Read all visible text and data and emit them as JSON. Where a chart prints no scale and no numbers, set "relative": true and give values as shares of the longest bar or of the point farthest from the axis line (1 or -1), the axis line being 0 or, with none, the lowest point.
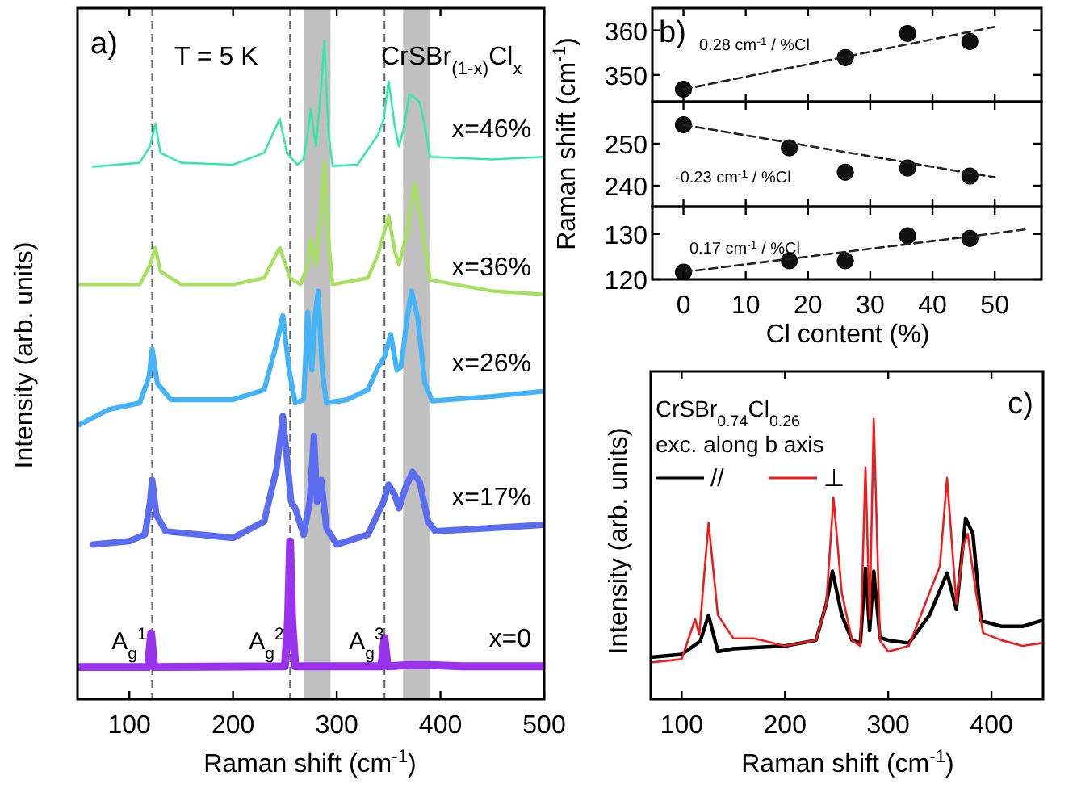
{
  "chart_data": [
    {
      "type": "line",
      "relative": true,
      "xlabel": "Raman shift (cm$^{-1}$)",
      "ylabel": "Intensity (arb. units)",
      "xlim": [
        50,
        500
      ],
      "xticks": [
        100,
        200,
        300,
        400,
        500
      ],
      "legend": false,
      "annotations": [
        "a)",
        "T = 5 K",
        "CrSBr$_{(1-x)}$Cl$_{x}$",
        "A$_{g}$$^{1}$",
        "A$_{g}$$^{2}$",
        "A$_{g}$$^{3}$"
      ],
      "ref_lines": [
        {
          "axis": "x",
          "value": 122,
          "line_style": "dashed",
          "color": "#666666"
        },
        {
          "axis": "x",
          "value": 255,
          "line_style": "dashed",
          "color": "#666666"
        },
        {
          "axis": "x",
          "value": 346,
          "line_style": "dashed",
          "color": "#666666"
        }
      ],
      "bands": [
        {
          "axis": "x",
          "from": 268,
          "to": 294,
          "color": "#c0c0c0"
        },
        {
          "axis": "x",
          "from": 364,
          "to": 390,
          "color": "#c0c0c0"
        }
      ],
      "series": [
        {
          "name": "x=0",
          "color": "#9933ee",
          "x": [
            50,
            118,
            121,
            124,
            250,
            253,
            255,
            257,
            260,
            343,
            346,
            349,
            370,
            390,
            420,
            500
          ],
          "values": [
            0.049,
            0.049,
            0.1,
            0.049,
            0.05,
            0.12,
            0.24,
            0.12,
            0.05,
            0.05,
            0.093,
            0.05,
            0.052,
            0.052,
            0.05,
            0.05
          ]
        },
        {
          "name": "x=17%",
          "color": "#5b6cf0",
          "x": [
            65,
            100,
            115,
            120,
            122,
            126,
            135,
            200,
            230,
            242,
            248,
            253,
            256,
            260,
            268,
            274,
            278,
            281,
            285,
            290,
            300,
            330,
            345,
            350,
            356,
            360,
            366,
            373,
            380,
            388,
            395,
            450,
            500
          ],
          "values": [
            0.235,
            0.24,
            0.25,
            0.3,
            0.333,
            0.28,
            0.255,
            0.245,
            0.27,
            0.35,
            0.43,
            0.35,
            0.3,
            0.29,
            0.25,
            0.3,
            0.4,
            0.3,
            0.333,
            0.26,
            0.235,
            0.25,
            0.3,
            0.326,
            0.31,
            0.29,
            0.32,
            0.345,
            0.33,
            0.27,
            0.255,
            0.26,
            0.265
          ]
        },
        {
          "name": "x=26%",
          "color": "#45b3f8",
          "x": [
            52,
            80,
            110,
            119,
            122,
            127,
            140,
            200,
            230,
            242,
            248,
            254,
            260,
            268,
            272,
            276,
            279,
            282,
            286,
            290,
            310,
            330,
            340,
            346,
            352,
            358,
            362,
            368,
            372,
            378,
            385,
            392,
            450,
            500
          ],
          "values": [
            0.417,
            0.44,
            0.45,
            0.49,
            0.532,
            0.48,
            0.455,
            0.455,
            0.47,
            0.54,
            0.583,
            0.5,
            0.45,
            0.455,
            0.588,
            0.5,
            0.58,
            0.62,
            0.5,
            0.45,
            0.455,
            0.47,
            0.505,
            0.52,
            0.554,
            0.5,
            0.505,
            0.58,
            0.62,
            0.58,
            0.48,
            0.453,
            0.46,
            0.468
          ]
        },
        {
          "name": "x=36%",
          "color": "#a6e05e",
          "x": [
            52,
            110,
            120,
            125,
            130,
            150,
            200,
            230,
            245,
            255,
            265,
            272,
            275,
            280,
            285,
            288,
            292,
            296,
            330,
            340,
            350,
            356,
            360,
            368,
            375,
            382,
            390,
            450,
            500
          ],
          "values": [
            0.63,
            0.63,
            0.66,
            0.686,
            0.65,
            0.63,
            0.63,
            0.64,
            0.686,
            0.64,
            0.63,
            0.66,
            0.7,
            0.66,
            0.74,
            0.816,
            0.7,
            0.63,
            0.64,
            0.676,
            0.735,
            0.68,
            0.66,
            0.71,
            0.784,
            0.72,
            0.637,
            0.62,
            0.615
          ]
        },
        {
          "name": "x=46%",
          "color": "#35e8a8",
          "x": [
            65,
            110,
            120,
            125,
            130,
            150,
            200,
            230,
            245,
            252,
            262,
            268,
            272,
            275,
            280,
            285,
            288,
            292,
            296,
            320,
            340,
            345,
            350,
            356,
            360,
            365,
            370,
            380,
            385,
            390,
            450,
            500
          ],
          "values": [
            0.809,
            0.815,
            0.84,
            0.875,
            0.83,
            0.815,
            0.812,
            0.83,
            0.882,
            0.83,
            0.812,
            0.82,
            0.86,
            0.897,
            0.84,
            0.93,
            1.0,
            0.86,
            0.81,
            0.812,
            0.858,
            0.88,
            0.939,
            0.87,
            0.84,
            0.87,
            0.919,
            0.907,
            0.87,
            0.824,
            0.82,
            0.824
          ]
        }
      ]
    },
    {
      "type": "scatter",
      "xlim": [
        -5,
        57.5
      ],
      "xticks": [
        0,
        10,
        20,
        30,
        40,
        50
      ],
      "ylim": [
        344,
        365
      ],
      "yticks": [
        350,
        360
      ],
      "tick_labels": "y",
      "annotations": [
        "b)",
        "0.28 cm$^{-1}$ / %Cl"
      ],
      "series": [
        {
          "marker": "circle",
          "color": "#111111",
          "x": [
            0,
            26,
            36,
            46
          ],
          "values": [
            346.8,
            353.9,
            359.3,
            357.5
          ]
        },
        {
          "type": "line",
          "line_style": "dashed",
          "color": "#222222",
          "x": [
            0,
            50
          ],
          "values": [
            346.8,
            360.8
          ]
        }
      ]
    },
    {
      "type": "scatter",
      "xlim": [
        -5,
        57.5
      ],
      "xticks": [
        0,
        10,
        20,
        30,
        40,
        50
      ],
      "ylim": [
        235,
        260
      ],
      "yticks": [
        240,
        250
      ],
      "tick_labels": "y",
      "ylabel": "Raman shift (cm$^{-1}$)",
      "annotations": [
        "-0.23 cm$^{-1}$ / %Cl"
      ],
      "series": [
        {
          "marker": "circle",
          "color": "#111111",
          "x": [
            0,
            17,
            26,
            36,
            46
          ],
          "values": [
            254.5,
            249,
            243.2,
            244.2,
            242.3
          ]
        },
        {
          "type": "line",
          "line_style": "dashed",
          "color": "#222222",
          "x": [
            0,
            50
          ],
          "values": [
            254.5,
            242
          ]
        }
      ]
    },
    {
      "type": "scatter",
      "xlim": [
        -5,
        57.5
      ],
      "xticks": [
        0,
        10,
        20,
        30,
        40,
        50
      ],
      "ylim": [
        120,
        136
      ],
      "yticks": [
        120,
        130
      ],
      "xlabel": "Cl content (%)",
      "annotations": [
        "0.17 cm$^{-1}$ / %Cl"
      ],
      "series": [
        {
          "marker": "circle",
          "color": "#111111",
          "x": [
            0,
            17,
            26,
            36,
            46
          ],
          "values": [
            121.6,
            124.1,
            124.1,
            129.6,
            129
          ]
        },
        {
          "type": "line",
          "line_style": "dashed",
          "color": "#222222",
          "x": [
            0,
            55
          ],
          "values": [
            121.6,
            131
          ]
        }
      ]
    },
    {
      "type": "line",
      "relative": true,
      "xlabel": "Raman shift (cm$^{-1}$)",
      "ylabel": "Intensity (arb. units)",
      "xlim": [
        70,
        450
      ],
      "xticks": [
        100,
        200,
        300,
        400
      ],
      "legend": "top left",
      "annotations": [
        "c)",
        "CrSBr$_{0.74}$Cl$_{0.26}$",
        "exc. along b axis"
      ],
      "series": [
        {
          "name": "//",
          "color": "#000000",
          "x": [
            70,
            100,
            118,
            126,
            135,
            150,
            200,
            230,
            240,
            246,
            255,
            265,
            273,
            278,
            282,
            286,
            292,
            300,
            320,
            340,
            357,
            366,
            375,
            382,
            390,
            410,
            430,
            448
          ],
          "values": [
            0.15,
            0.16,
            0.207,
            0.3,
            0.17,
            0.18,
            0.19,
            0.21,
            0.34,
            0.457,
            0.3,
            0.21,
            0.2,
            0.467,
            0.245,
            0.457,
            0.22,
            0.21,
            0.2,
            0.3,
            0.45,
            0.32,
            0.646,
            0.59,
            0.28,
            0.26,
            0.26,
            0.28
          ]
        },
        {
          "name": "⊥",
          "color": "#ee1c1c",
          "x": [
            70,
            100,
            113,
            117,
            126,
            135,
            150,
            170,
            200,
            230,
            240,
            247,
            255,
            265,
            273,
            278,
            282,
            286,
            292,
            300,
            320,
            340,
            350,
            357,
            366,
            373,
            377,
            385,
            392,
            410,
            430,
            448
          ],
          "values": [
            0.131,
            0.143,
            0.286,
            0.23,
            0.63,
            0.3,
            0.217,
            0.217,
            0.19,
            0.21,
            0.34,
            0.72,
            0.38,
            0.21,
            0.19,
            0.827,
            0.286,
            1.0,
            0.21,
            0.17,
            0.19,
            0.38,
            0.474,
            0.79,
            0.34,
            0.55,
            0.59,
            0.38,
            0.236,
            0.21,
            0.19,
            0.2
          ]
        }
      ]
    }
  ]
}
